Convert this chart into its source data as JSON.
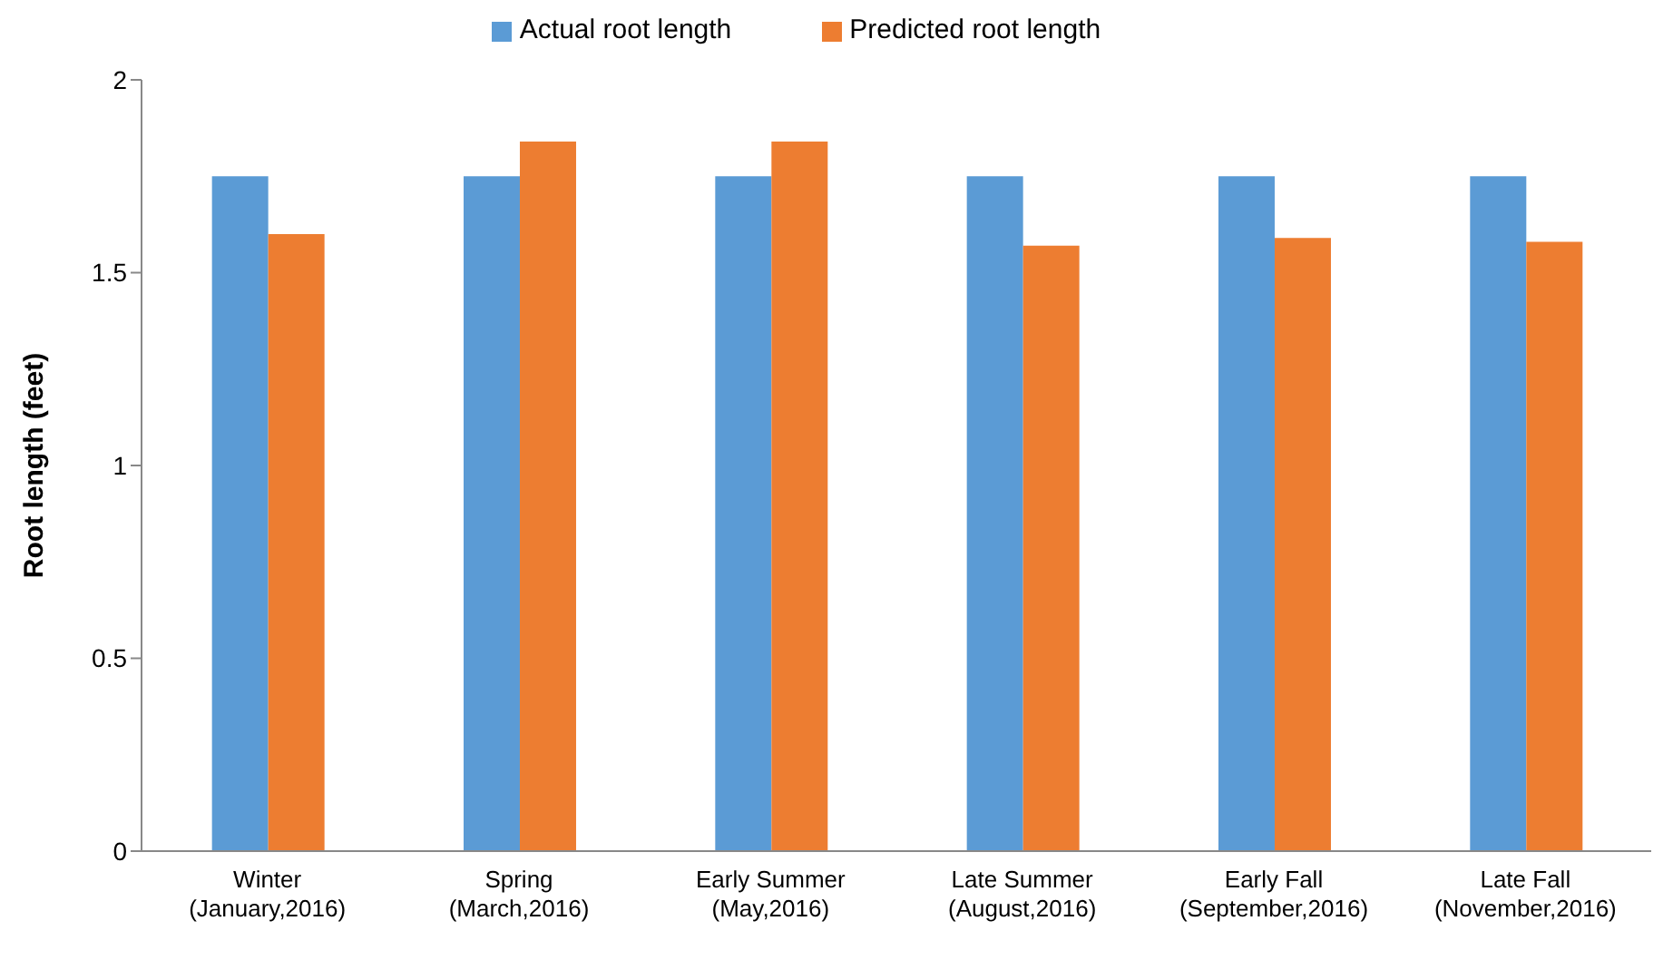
{
  "chart_data": {
    "type": "bar",
    "ylabel": "Root length (feet)",
    "categories": [
      "Winter\n(January,2016)",
      "Spring\n(March,2016)",
      "Early Summer\n(May,2016)",
      "Late Summer\n(August,2016)",
      "Early Fall\n(September,2016)",
      "Late Fall\n(November,2016)"
    ],
    "series": [
      {
        "name": "Actual root length",
        "color": "#5b9bd5",
        "values": [
          1.75,
          1.75,
          1.75,
          1.75,
          1.75,
          1.75
        ]
      },
      {
        "name": "Predicted root length",
        "color": "#ed7d31",
        "values": [
          1.6,
          1.84,
          1.84,
          1.57,
          1.59,
          1.58
        ]
      }
    ],
    "ylim": [
      0,
      2
    ],
    "yticks": [
      0,
      0.5,
      1,
      1.5,
      2
    ],
    "grid": false,
    "legend": "top"
  }
}
